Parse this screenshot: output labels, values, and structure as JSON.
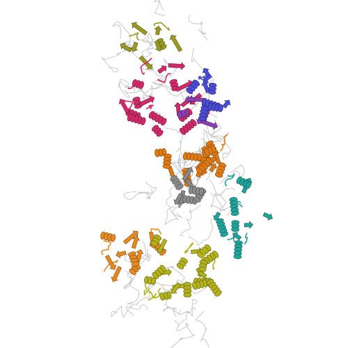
{
  "image": {
    "background": "#ffffff",
    "style": "ribbon",
    "domains": [
      {
        "name": "domain-olive-top",
        "color": "#9a9a22"
      },
      {
        "name": "domain-magenta",
        "color": "#d12a6b"
      },
      {
        "name": "domain-blue",
        "color": "#4b4bd6"
      },
      {
        "name": "domain-purple",
        "color": "#8b3fb0"
      },
      {
        "name": "domain-orange-middle",
        "color": "#e07a12"
      },
      {
        "name": "domain-gray",
        "color": "#8a8a8a"
      },
      {
        "name": "domain-teal",
        "color": "#1fa39a"
      },
      {
        "name": "domain-orange-lower",
        "color": "#e58a20"
      },
      {
        "name": "domain-yellow-green",
        "color": "#b3b21a"
      },
      {
        "name": "coil",
        "color": "#b9b9b9"
      }
    ]
  }
}
